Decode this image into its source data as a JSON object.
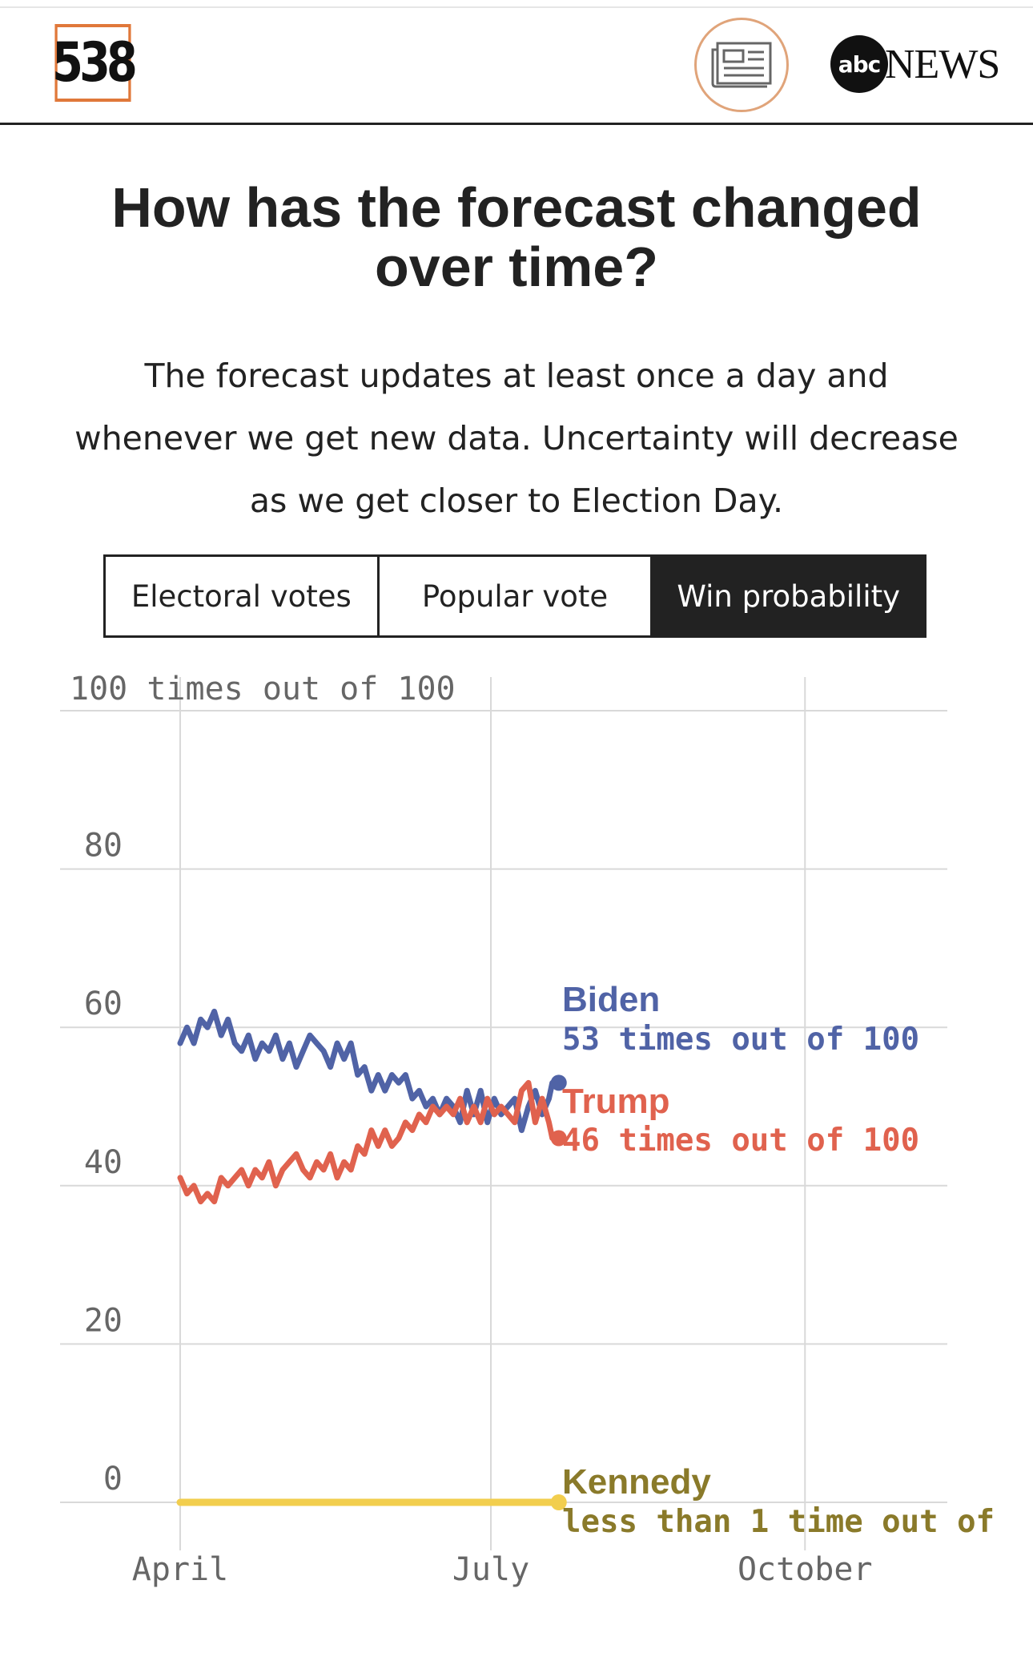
{
  "header": {
    "logo_text": "538",
    "news_icon": "newspaper-icon",
    "partner_logo_mark": "abc",
    "partner_logo_text": "NEWS"
  },
  "title_line1": "How has the forecast changed",
  "title_line2": "over time?",
  "description_lines": [
    "The forecast updates at least once a day and",
    "whenever we get new data. Uncertainty will decrease",
    "as we get closer to Election Day."
  ],
  "tabs": [
    {
      "label": "Electoral votes",
      "active": false
    },
    {
      "label": "Popular vote",
      "active": false
    },
    {
      "label": "Win probability",
      "active": true
    }
  ],
  "chart_data": {
    "type": "line",
    "x_ticks": [
      "April",
      "July",
      "October"
    ],
    "x_tick_dates": [
      "2024-04-01",
      "2024-07-01",
      "2024-10-01"
    ],
    "xlim": [
      "2024-03-01",
      "2024-11-15"
    ],
    "y_ticks": [
      0,
      20,
      40,
      60,
      80,
      100
    ],
    "y_top_label": "100 times out of 100",
    "ylim": [
      0,
      100
    ],
    "grid": true,
    "series": [
      {
        "name": "Biden",
        "color": "#5063a6",
        "label_value": "53 times out of 100",
        "end_value": 53,
        "points": [
          [
            "2024-04-01",
            58
          ],
          [
            "2024-04-03",
            60
          ],
          [
            "2024-04-05",
            58
          ],
          [
            "2024-04-07",
            61
          ],
          [
            "2024-04-09",
            60
          ],
          [
            "2024-04-11",
            62
          ],
          [
            "2024-04-13",
            59
          ],
          [
            "2024-04-15",
            61
          ],
          [
            "2024-04-17",
            58
          ],
          [
            "2024-04-19",
            57
          ],
          [
            "2024-04-21",
            59
          ],
          [
            "2024-04-23",
            56
          ],
          [
            "2024-04-25",
            58
          ],
          [
            "2024-04-27",
            57
          ],
          [
            "2024-04-29",
            59
          ],
          [
            "2024-05-01",
            56
          ],
          [
            "2024-05-03",
            58
          ],
          [
            "2024-05-05",
            55
          ],
          [
            "2024-05-07",
            57
          ],
          [
            "2024-05-09",
            59
          ],
          [
            "2024-05-11",
            58
          ],
          [
            "2024-05-13",
            57
          ],
          [
            "2024-05-15",
            55
          ],
          [
            "2024-05-17",
            58
          ],
          [
            "2024-05-19",
            56
          ],
          [
            "2024-05-21",
            58
          ],
          [
            "2024-05-23",
            54
          ],
          [
            "2024-05-25",
            55
          ],
          [
            "2024-05-27",
            52
          ],
          [
            "2024-05-29",
            54
          ],
          [
            "2024-05-31",
            52
          ],
          [
            "2024-06-02",
            54
          ],
          [
            "2024-06-04",
            53
          ],
          [
            "2024-06-06",
            54
          ],
          [
            "2024-06-08",
            51
          ],
          [
            "2024-06-10",
            52
          ],
          [
            "2024-06-12",
            50
          ],
          [
            "2024-06-14",
            51
          ],
          [
            "2024-06-16",
            49
          ],
          [
            "2024-06-18",
            51
          ],
          [
            "2024-06-20",
            50
          ],
          [
            "2024-06-22",
            48
          ],
          [
            "2024-06-24",
            52
          ],
          [
            "2024-06-26",
            49
          ],
          [
            "2024-06-28",
            52
          ],
          [
            "2024-06-30",
            48
          ],
          [
            "2024-07-02",
            51
          ],
          [
            "2024-07-04",
            49
          ],
          [
            "2024-07-06",
            50
          ],
          [
            "2024-07-08",
            51
          ],
          [
            "2024-07-10",
            47
          ],
          [
            "2024-07-12",
            50
          ],
          [
            "2024-07-14",
            52
          ],
          [
            "2024-07-16",
            49
          ],
          [
            "2024-07-18",
            51
          ],
          [
            "2024-07-19",
            53
          ]
        ]
      },
      {
        "name": "Trump",
        "color": "#e0624e",
        "label_value": "46 times out of 100",
        "end_value": 46,
        "points": [
          [
            "2024-04-01",
            41
          ],
          [
            "2024-04-03",
            39
          ],
          [
            "2024-04-05",
            40
          ],
          [
            "2024-04-07",
            38
          ],
          [
            "2024-04-09",
            39
          ],
          [
            "2024-04-11",
            38
          ],
          [
            "2024-04-13",
            41
          ],
          [
            "2024-04-15",
            40
          ],
          [
            "2024-04-17",
            41
          ],
          [
            "2024-04-19",
            42
          ],
          [
            "2024-04-21",
            40
          ],
          [
            "2024-04-23",
            42
          ],
          [
            "2024-04-25",
            41
          ],
          [
            "2024-04-27",
            43
          ],
          [
            "2024-04-29",
            40
          ],
          [
            "2024-05-01",
            42
          ],
          [
            "2024-05-03",
            43
          ],
          [
            "2024-05-05",
            44
          ],
          [
            "2024-05-07",
            42
          ],
          [
            "2024-05-09",
            41
          ],
          [
            "2024-05-11",
            43
          ],
          [
            "2024-05-13",
            42
          ],
          [
            "2024-05-15",
            44
          ],
          [
            "2024-05-17",
            41
          ],
          [
            "2024-05-19",
            43
          ],
          [
            "2024-05-21",
            42
          ],
          [
            "2024-05-23",
            45
          ],
          [
            "2024-05-25",
            44
          ],
          [
            "2024-05-27",
            47
          ],
          [
            "2024-05-29",
            45
          ],
          [
            "2024-05-31",
            47
          ],
          [
            "2024-06-02",
            45
          ],
          [
            "2024-06-04",
            46
          ],
          [
            "2024-06-06",
            48
          ],
          [
            "2024-06-08",
            47
          ],
          [
            "2024-06-10",
            49
          ],
          [
            "2024-06-12",
            48
          ],
          [
            "2024-06-14",
            50
          ],
          [
            "2024-06-16",
            49
          ],
          [
            "2024-06-18",
            50
          ],
          [
            "2024-06-20",
            49
          ],
          [
            "2024-06-22",
            51
          ],
          [
            "2024-06-24",
            48
          ],
          [
            "2024-06-26",
            50
          ],
          [
            "2024-06-28",
            48
          ],
          [
            "2024-06-30",
            51
          ],
          [
            "2024-07-02",
            49
          ],
          [
            "2024-07-04",
            50
          ],
          [
            "2024-07-06",
            49
          ],
          [
            "2024-07-08",
            48
          ],
          [
            "2024-07-10",
            52
          ],
          [
            "2024-07-12",
            53
          ],
          [
            "2024-07-14",
            48
          ],
          [
            "2024-07-16",
            51
          ],
          [
            "2024-07-18",
            48
          ],
          [
            "2024-07-19",
            46
          ]
        ]
      },
      {
        "name": "Kennedy",
        "color": "#f2ce4e",
        "label_color": "#8a7a2a",
        "label_value": "less than 1 time out of",
        "end_value": 0,
        "points": [
          [
            "2024-04-01",
            0
          ],
          [
            "2024-07-19",
            0
          ]
        ]
      }
    ]
  }
}
